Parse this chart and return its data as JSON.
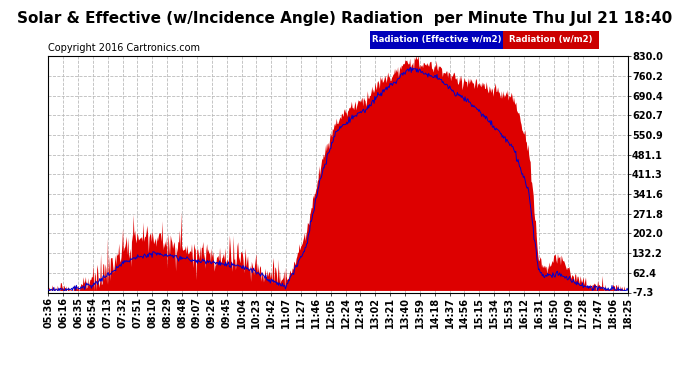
{
  "title": "Solar & Effective (w/Incidence Angle) Radiation  per Minute Thu Jul 21 18:40",
  "copyright": "Copyright 2016 Cartronics.com",
  "legend1": "Radiation (Effective w/m2)",
  "legend2": "Radiation (w/m2)",
  "legend1_bg": "#0000bb",
  "legend2_bg": "#cc0000",
  "yticks": [
    830.0,
    760.2,
    690.4,
    620.7,
    550.9,
    481.1,
    411.3,
    341.6,
    271.8,
    202.0,
    132.2,
    62.4,
    -7.3
  ],
  "ymin": -7.3,
  "ymax": 830.0,
  "fill_color": "#dd0000",
  "line_color": "#0000cc",
  "background_color": "#ffffff",
  "grid_color": "#bbbbbb",
  "title_fontsize": 11,
  "copyright_fontsize": 7,
  "tick_fontsize": 7,
  "xtick_labels": [
    "05:36",
    "06:16",
    "06:35",
    "06:54",
    "07:13",
    "07:32",
    "07:51",
    "08:10",
    "08:29",
    "08:48",
    "09:07",
    "09:26",
    "09:45",
    "10:04",
    "10:23",
    "10:42",
    "11:07",
    "11:27",
    "11:46",
    "12:05",
    "12:24",
    "12:43",
    "13:02",
    "13:21",
    "13:40",
    "13:59",
    "14:18",
    "14:37",
    "14:56",
    "15:15",
    "15:34",
    "15:53",
    "16:12",
    "16:31",
    "16:50",
    "17:09",
    "17:28",
    "17:47",
    "18:06",
    "18:25"
  ]
}
